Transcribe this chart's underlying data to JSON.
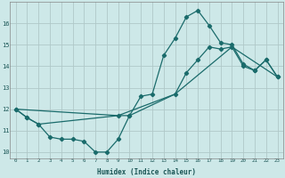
{
  "xlabel": "Humidex (Indice chaleur)",
  "bg_color": "#cde8e8",
  "grid_color": "#b0c8c8",
  "line_color": "#1a6b6b",
  "xlim": [
    -0.5,
    23.5
  ],
  "ylim": [
    9.7,
    17.0
  ],
  "yticks": [
    10,
    11,
    12,
    13,
    14,
    15,
    16
  ],
  "xticks": [
    0,
    1,
    2,
    3,
    4,
    5,
    6,
    7,
    8,
    9,
    10,
    11,
    12,
    13,
    14,
    15,
    16,
    17,
    18,
    19,
    20,
    21,
    22,
    23
  ],
  "line1_x": [
    0,
    1,
    2,
    3,
    4,
    5,
    6,
    7,
    8,
    9,
    10,
    11,
    12,
    13,
    14,
    15,
    16,
    17,
    18,
    19,
    20,
    21,
    22,
    23
  ],
  "line1_y": [
    12.0,
    11.6,
    11.3,
    10.7,
    10.6,
    10.6,
    10.5,
    10.0,
    10.0,
    10.6,
    11.7,
    12.6,
    12.7,
    14.5,
    15.3,
    16.3,
    16.6,
    15.9,
    15.1,
    15.0,
    14.1,
    13.8,
    14.3,
    13.5
  ],
  "line2_x": [
    0,
    1,
    2,
    9,
    10,
    14,
    15,
    16,
    17,
    18,
    19,
    20,
    21,
    22,
    23
  ],
  "line2_y": [
    12.0,
    11.6,
    11.3,
    11.7,
    11.7,
    12.7,
    13.7,
    14.3,
    14.9,
    14.8,
    14.9,
    14.0,
    13.8,
    14.3,
    13.5
  ],
  "line3_x": [
    0,
    23
  ],
  "line3_y": [
    12.0,
    13.5
  ],
  "line3b_x": [
    0,
    9,
    14,
    19,
    23
  ],
  "line3b_y": [
    12.0,
    11.7,
    12.7,
    14.9,
    13.5
  ]
}
